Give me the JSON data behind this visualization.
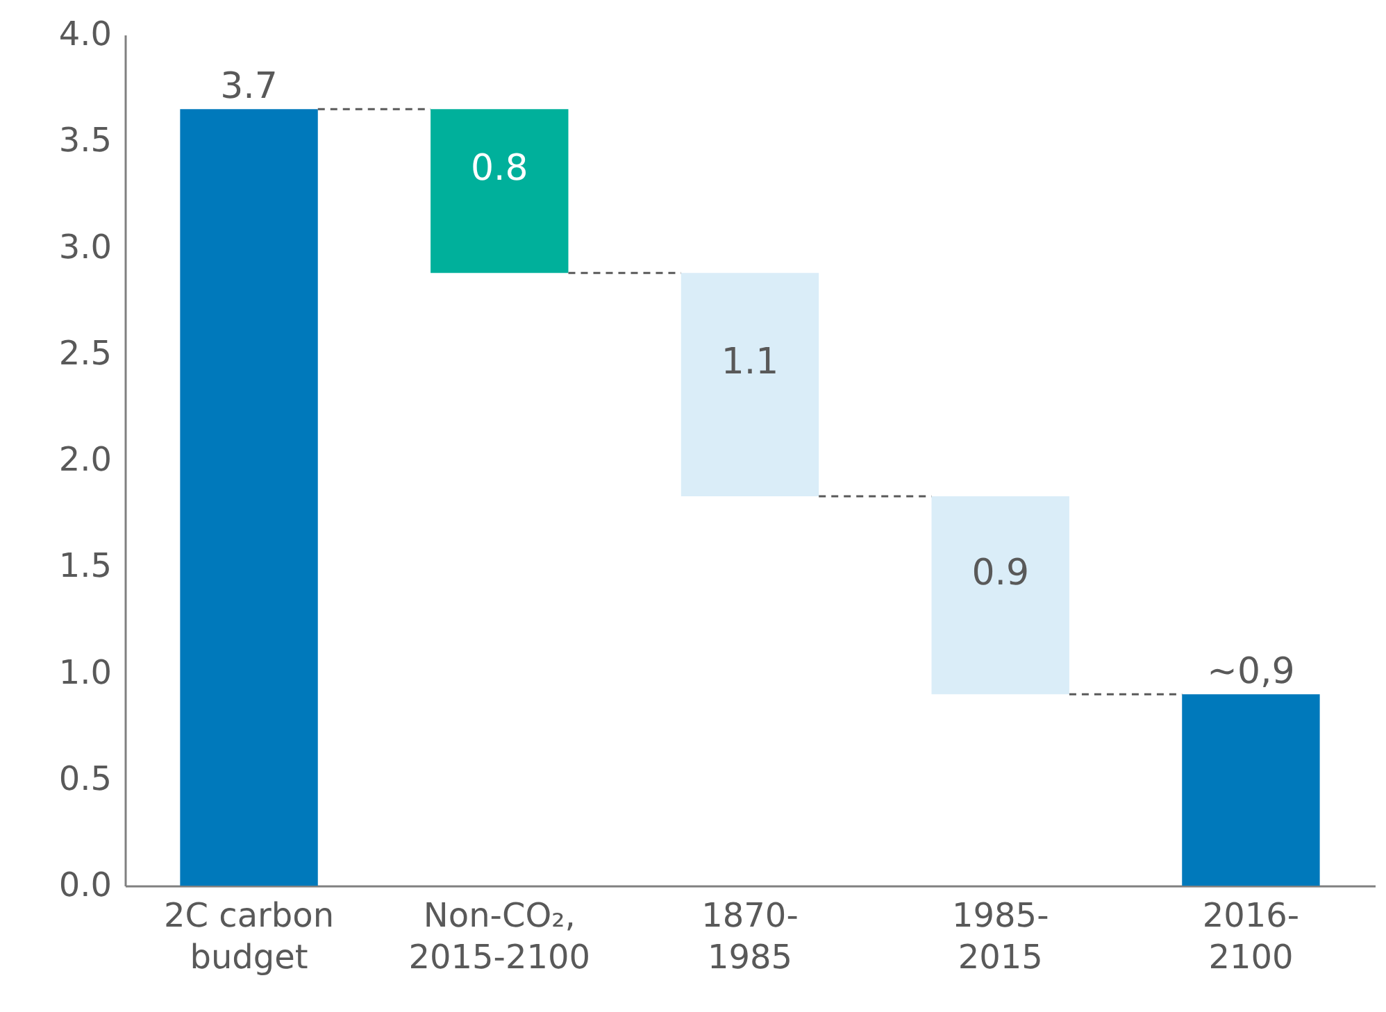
{
  "chart_data": {
    "type": "bar",
    "categories": [
      "2C carbon budget",
      "Non-CO₂, 2015-2100",
      "1870-1985",
      "1985-2015",
      "2016-2100"
    ],
    "values": [
      3.65,
      0.77,
      1.05,
      0.93,
      0.9
    ],
    "base": [
      0,
      2.88,
      1.83,
      0.9,
      0
    ],
    "colors": [
      "#0079bb",
      "#00b09b",
      "#daedf8",
      "#daedf8",
      "#0079bb"
    ],
    "value_labels": [
      "3.7",
      "0.8",
      "1.1",
      "0.9",
      "~0,9"
    ],
    "ylim": [
      0,
      4
    ],
    "yticks": [
      {
        "value": 0,
        "label": "0.0"
      },
      {
        "value": 0.5,
        "label": "0.5"
      },
      {
        "value": 1,
        "label": "1.0"
      },
      {
        "value": 1.5,
        "label": "1.5"
      },
      {
        "value": 2,
        "label": "2.0"
      },
      {
        "value": 2.5,
        "label": "2.5"
      },
      {
        "value": 3,
        "label": "3.0"
      },
      {
        "value": 3.5,
        "label": "3.5"
      },
      {
        "value": 4,
        "label": "4.0"
      }
    ],
    "grid": false
  }
}
